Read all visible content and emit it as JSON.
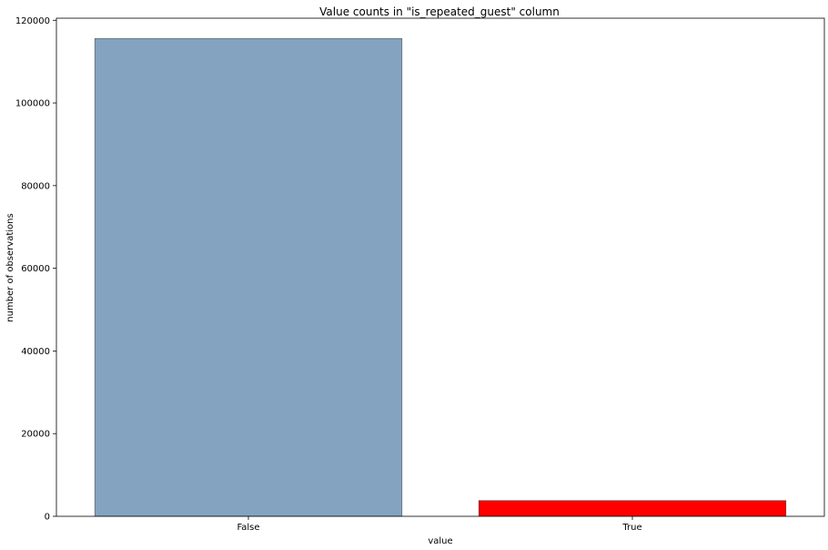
{
  "chart_data": {
    "type": "bar",
    "title": "Value counts in \"is_repeated_guest\" column",
    "xlabel": "value",
    "ylabel": "number of observations",
    "categories": [
      "False",
      "True"
    ],
    "values": [
      115580,
      3810
    ],
    "colors": [
      "#84a3c1",
      "#ff0000"
    ],
    "ylim": [
      0,
      120500
    ],
    "yticks": [
      0,
      20000,
      40000,
      60000,
      80000,
      100000,
      120000
    ],
    "grid": false,
    "legend": "none"
  }
}
